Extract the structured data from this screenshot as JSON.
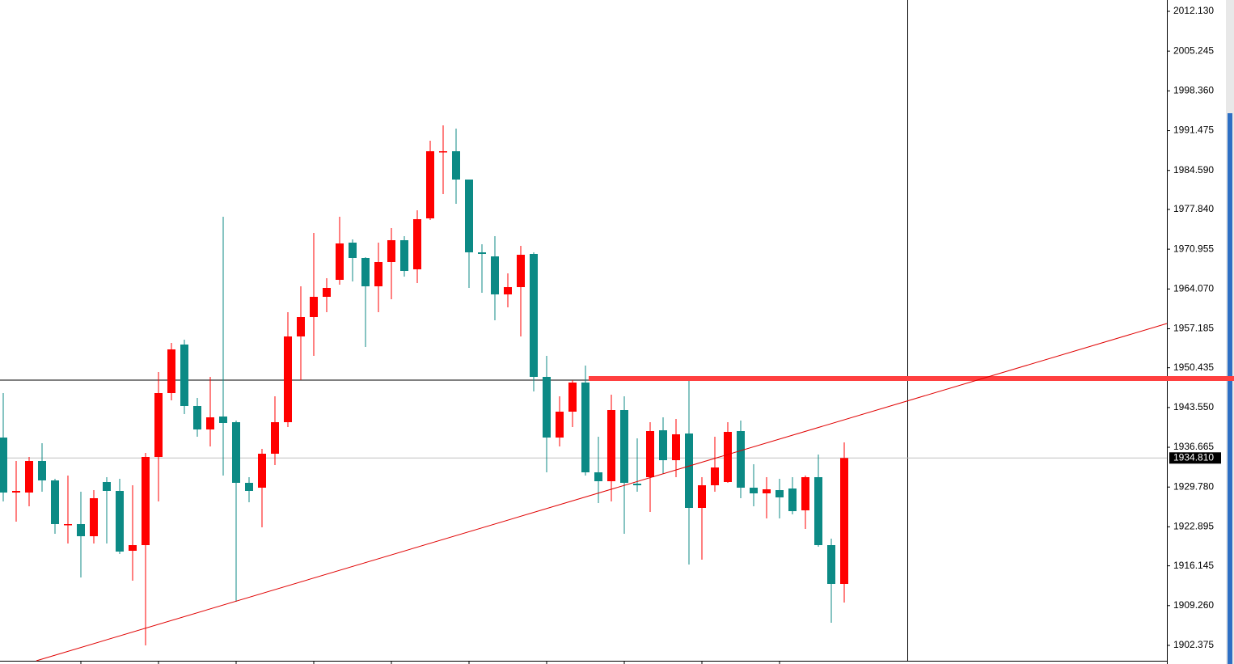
{
  "chart_data": {
    "type": "candlestick",
    "open": [
      1938.35,
      1928.83,
      1928.83,
      1934.29,
      1930.93,
      1923.37,
      1923.37,
      1921.27,
      1930.65,
      1929.11,
      1918.75,
      1919.73,
      1934.99,
      1946.05,
      1954.45,
      1943.81,
      1939.75,
      1941.99,
      1941.01,
      1930.51,
      1929.67,
      1935.55,
      1941.01,
      1955.85,
      1959.21,
      1962.71,
      1965.65,
      1972.09,
      1969.43,
      1964.53,
      1968.73,
      1972.51,
      1967.47,
      1976.29,
      1987.77,
      1987.91,
      1983.01,
      1970.41,
      1969.71,
      1963.13,
      1964.39,
      1970.13,
      1948.85,
      1938.35,
      1942.83,
      1947.87,
      1932.33,
      1930.79,
      1943.11,
      1930.37,
      1931.49,
      1939.61,
      1934.43,
      1939.05,
      1926.17,
      1930.09,
      1930.65,
      1939.47,
      1929.67,
      1928.69,
      1929.25,
      1929.53,
      1925.75,
      1931.49,
      1919.73,
      1913.01
    ],
    "high": [
      1946.05,
      1934.29,
      1934.99,
      1937.37,
      1931.21,
      1931.77,
      1928.97,
      1929.25,
      1931.49,
      1931.21,
      1930.09,
      1935.69,
      1949.69,
      1954.73,
      1955.29,
      1945.21,
      1948.85,
      1976.57,
      1941.29,
      1931.49,
      1936.39,
      1945.49,
      1960.05,
      1964.53,
      1973.77,
      1965.93,
      1976.57,
      1972.65,
      1969.57,
      1972.09,
      1974.61,
      1973.21,
      1977.69,
      1989.73,
      1992.39,
      1991.83,
      1983.01,
      1971.81,
      1973.21,
      1966.77,
      1971.53,
      1970.41,
      1952.49,
      1945.49,
      1948.29,
      1950.81,
      1938.49,
      1945.77,
      1945.49,
      1938.21,
      1941.01,
      1941.85,
      1941.57,
      1948.29,
      1931.49,
      1938.49,
      1941.01,
      1941.29,
      1933.73,
      1931.49,
      1931.21,
      1931.49,
      1931.77,
      1935.41,
      1920.85,
      1937.51
    ],
    "low": [
      1927.29,
      1923.79,
      1926.45,
      1928.97,
      1921.69,
      1920.01,
      1914.13,
      1920.01,
      1920.01,
      1918.19,
      1913.57,
      1902.37,
      1927.29,
      1944.79,
      1942.41,
      1938.49,
      1936.81,
      1931.77,
      1909.93,
      1927.15,
      1922.81,
      1933.59,
      1940.17,
      1948.29,
      1952.49,
      1960.05,
      1964.81,
      1965.37,
      1954.03,
      1960.05,
      1962.29,
      1966.21,
      1965.09,
      1976.01,
      1980.49,
      1978.81,
      1964.25,
      1963.41,
      1958.65,
      1960.89,
      1955.85,
      1946.33,
      1932.33,
      1936.81,
      1940.17,
      1931.77,
      1927.01,
      1927.29,
      1921.69,
      1928.97,
      1925.47,
      1932.05,
      1931.49,
      1916.37,
      1917.21,
      1928.97,
      1930.51,
      1927.85,
      1926.45,
      1924.35,
      1924.35,
      1925.05,
      1922.53,
      1919.45,
      1906.29,
      1909.79
    ],
    "close": [
      1928.83,
      1929.11,
      1934.29,
      1930.93,
      1923.37,
      1923.37,
      1921.27,
      1927.85,
      1929.11,
      1918.61,
      1919.73,
      1934.99,
      1946.05,
      1953.61,
      1943.81,
      1939.75,
      1941.85,
      1940.87,
      1930.51,
      1929.11,
      1935.55,
      1941.01,
      1955.85,
      1959.21,
      1962.71,
      1964.25,
      1971.95,
      1969.43,
      1964.53,
      1968.73,
      1972.51,
      1967.19,
      1976.15,
      1987.91,
      1987.91,
      1983.01,
      1970.41,
      1970.13,
      1963.13,
      1964.39,
      1969.99,
      1948.85,
      1938.35,
      1942.83,
      1947.87,
      1932.33,
      1930.79,
      1943.11,
      1930.51,
      1930.09,
      1939.47,
      1934.43,
      1938.91,
      1926.17,
      1930.09,
      1933.17,
      1939.33,
      1929.67,
      1928.69,
      1929.39,
      1927.99,
      1925.61,
      1931.49,
      1919.73,
      1913.01,
      1934.81
    ],
    "up_color": "#ff0000",
    "down_color": "#0c8a85",
    "ylim": [
      1899.71,
      2014.09
    ],
    "yticks": [
      {
        "value": 2012.13,
        "label": "2012.130"
      },
      {
        "value": 2005.245,
        "label": "2005.245"
      },
      {
        "value": 1998.36,
        "label": "1998.360"
      },
      {
        "value": 1991.475,
        "label": "1991.475"
      },
      {
        "value": 1984.59,
        "label": "1984.590"
      },
      {
        "value": 1977.84,
        "label": "1977.840"
      },
      {
        "value": 1970.955,
        "label": "1970.955"
      },
      {
        "value": 1964.07,
        "label": "1964.070"
      },
      {
        "value": 1957.185,
        "label": "1957.185"
      },
      {
        "value": 1950.435,
        "label": "1950.435"
      },
      {
        "value": 1943.55,
        "label": "1943.550"
      },
      {
        "value": 1936.665,
        "label": "1936.665"
      },
      {
        "value": 1929.78,
        "label": "1929.780"
      },
      {
        "value": 1922.895,
        "label": "1922.895"
      },
      {
        "value": 1916.145,
        "label": "1916.145"
      },
      {
        "value": 1909.26,
        "label": "1909.260"
      },
      {
        "value": 1902.375,
        "label": "1902.375"
      }
    ],
    "current_price": {
      "value": 1934.81,
      "label": "1934.810"
    },
    "hline": 1948.29,
    "level": {
      "x_start": 45.25,
      "price": 1948.57,
      "color": "#ff4040"
    },
    "trendline": {
      "x": [
        2.56,
        89.94
      ],
      "y": [
        1899.71,
        1958.09
      ],
      "color": "#e00000"
    }
  }
}
